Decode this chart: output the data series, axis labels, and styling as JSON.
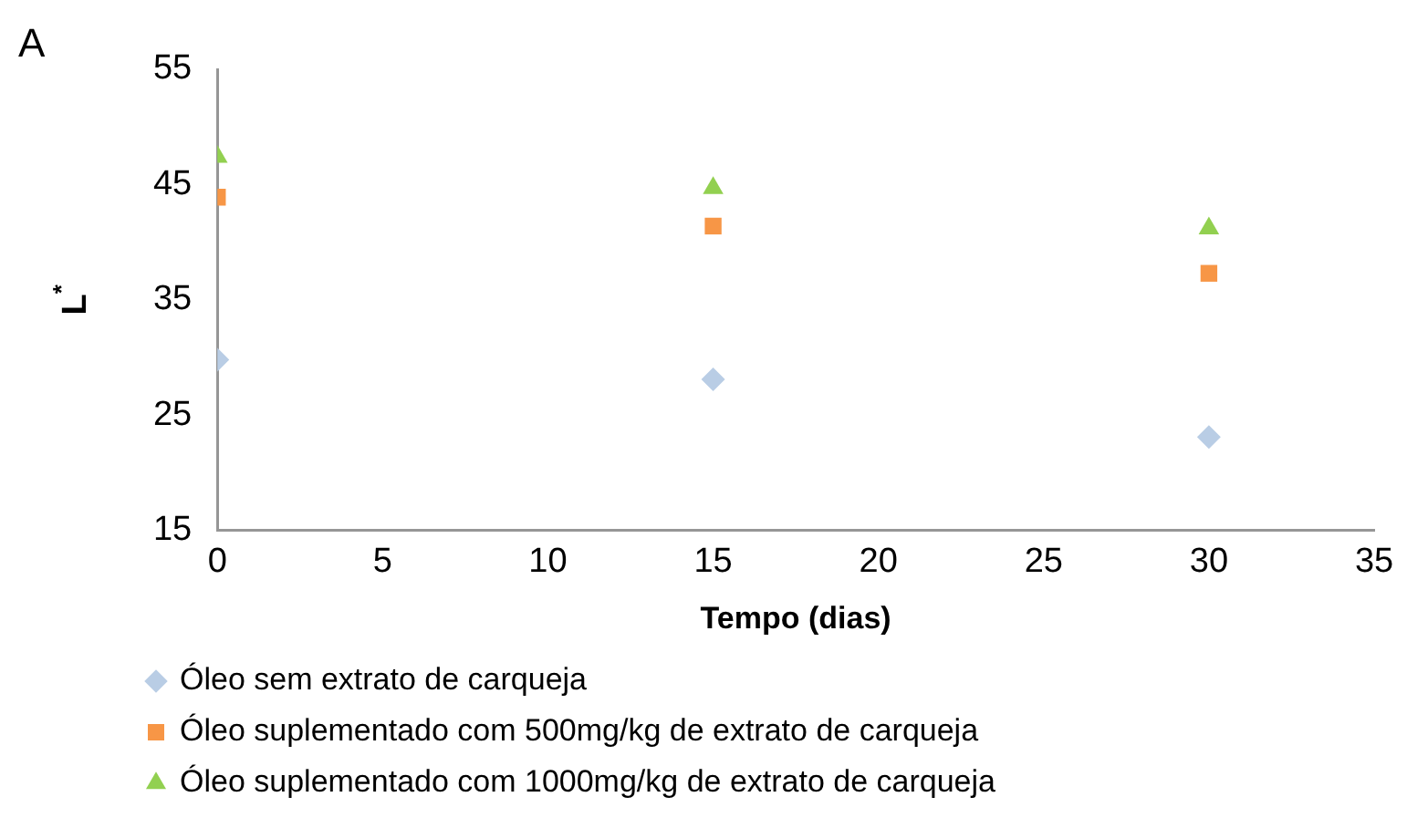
{
  "chart_data": {
    "type": "scatter",
    "title": "A",
    "xlabel": "Tempo (dias)",
    "ylabel": "L$^{*}$",
    "x": [
      0,
      15,
      30
    ],
    "series": [
      {
        "name": "Óleo sem extrato de carqueja",
        "color": "#b9cde5",
        "marker": "diamond",
        "values": [
          29.8,
          28.1,
          23.1
        ]
      },
      {
        "name": "Óleo suplementado com 500mg/kg de extrato de carqueja",
        "color": "#f79646",
        "marker": "square",
        "values": [
          43.9,
          41.4,
          37.3
        ]
      },
      {
        "name": "Óleo suplementado com 1000mg/kg de extrato de carqueja",
        "color": "#92d050",
        "marker": "triangle",
        "values": [
          47.4,
          44.7,
          41.2
        ]
      }
    ],
    "xlim": [
      0,
      35
    ],
    "xticks": [
      0,
      5,
      10,
      15,
      20,
      25,
      30,
      35
    ],
    "ylim": [
      15,
      55
    ],
    "yticks": [
      15,
      25,
      35,
      45,
      55
    ],
    "grid": false,
    "legend": "bottom"
  }
}
